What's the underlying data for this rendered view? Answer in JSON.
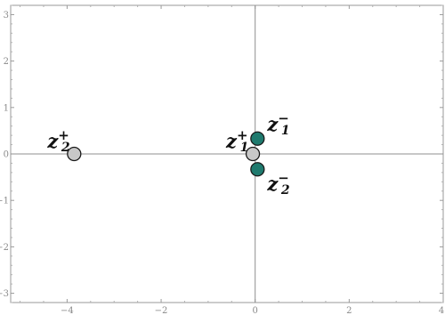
{
  "chart_data": {
    "type": "scatter",
    "xlim": [
      -5.2,
      4
    ],
    "ylim": [
      -3.2,
      3.2
    ],
    "x_ticks": [
      -4,
      -2,
      0,
      2,
      4
    ],
    "x_tick_labels": [
      "−4",
      "−2",
      "0",
      "2",
      "4"
    ],
    "y_ticks": [
      -3,
      -2,
      -1,
      0,
      1,
      2,
      3
    ],
    "y_tick_labels": [
      "−3",
      "−2",
      "−1",
      "0",
      "1",
      "2",
      "3"
    ],
    "grid": false,
    "axes_through_origin": true,
    "points": [
      {
        "id": "z2-plus",
        "x": -3.85,
        "y": 0.0,
        "color": "#c8c8c8",
        "label": {
          "base": "z",
          "sub": "2",
          "sup": "+",
          "anchor": "left-above"
        }
      },
      {
        "id": "z1-plus",
        "x": -0.05,
        "y": 0.0,
        "color": "#c8c8c8",
        "label": {
          "base": "z",
          "sub": "1",
          "sup": "+",
          "anchor": "left-above"
        }
      },
      {
        "id": "z1-minus",
        "x": 0.05,
        "y": 0.33,
        "color": "#1f7a6e",
        "label": {
          "base": "z",
          "sub": "1",
          "sup": "−",
          "anchor": "right-above"
        }
      },
      {
        "id": "z2-minus",
        "x": 0.05,
        "y": -0.33,
        "color": "#1f7a6e",
        "label": {
          "base": "z",
          "sub": "2",
          "sup": "−",
          "anchor": "right-below"
        }
      }
    ]
  }
}
